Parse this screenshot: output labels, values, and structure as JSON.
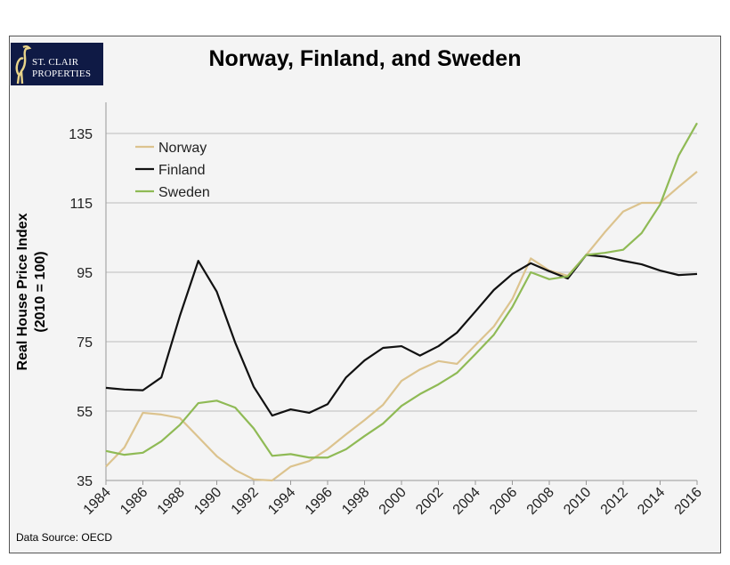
{
  "logo": {
    "line1": "ST. CLAIR",
    "line2": "PROPERTIES"
  },
  "source": "Data Source: OECD",
  "chart_data": {
    "type": "line",
    "title": "Norway, Finland, and Sweden",
    "xlabel": "",
    "ylabel": [
      "Real House Price Index",
      "(2010 = 100)"
    ],
    "xlim": [
      1984,
      2016
    ],
    "ylim": [
      35,
      145
    ],
    "yticks": [
      35,
      55,
      75,
      95,
      115,
      135
    ],
    "xticks": [
      1984,
      1986,
      1988,
      1990,
      1992,
      1994,
      1996,
      1998,
      2000,
      2002,
      2004,
      2006,
      2008,
      2010,
      2012,
      2014,
      2016
    ],
    "grid": "horizontal",
    "legend_position": "top-left",
    "x": [
      1984,
      1985,
      1986,
      1987,
      1988,
      1989,
      1990,
      1991,
      1992,
      1993,
      1994,
      1995,
      1996,
      1997,
      1998,
      1999,
      2000,
      2001,
      2002,
      2003,
      2004,
      2005,
      2006,
      2007,
      2008,
      2009,
      2010,
      2011,
      2012,
      2013,
      2014,
      2015,
      2016
    ],
    "series": [
      {
        "name": "Norway",
        "color": "#dcc38e",
        "values": [
          39,
          44.5,
          54.5,
          54,
          53,
          47.5,
          42,
          38,
          35.3,
          35,
          39,
          40.6,
          44,
          48.3,
          52.4,
          56.8,
          63.7,
          67,
          69.4,
          68.6,
          74,
          79.4,
          87.3,
          99,
          95.5,
          94,
          100,
          106.5,
          112.5,
          115,
          115,
          119.6,
          124
        ]
      },
      {
        "name": "Finland",
        "color": "#111111",
        "values": [
          61.7,
          61.2,
          61,
          64.7,
          82.4,
          98.3,
          89.4,
          74.7,
          62,
          53.7,
          55.5,
          54.5,
          57,
          64.7,
          69.6,
          73.2,
          73.7,
          71,
          73.7,
          77.6,
          83.7,
          89.9,
          94.5,
          97.6,
          95.3,
          93.2,
          100,
          99.5,
          98.3,
          97.3,
          95.5,
          94.2,
          94.5
        ]
      },
      {
        "name": "Sweden",
        "color": "#8fba55",
        "values": [
          43.5,
          42.4,
          43,
          46.3,
          51,
          57.3,
          58,
          56,
          50,
          42.1,
          42.6,
          41.6,
          41.6,
          44,
          47.8,
          51.4,
          56.5,
          59.9,
          62.7,
          66,
          71.4,
          77,
          85,
          95,
          93,
          93.8,
          100,
          100.6,
          101.5,
          106.3,
          114.5,
          128.6,
          138
        ]
      }
    ]
  }
}
